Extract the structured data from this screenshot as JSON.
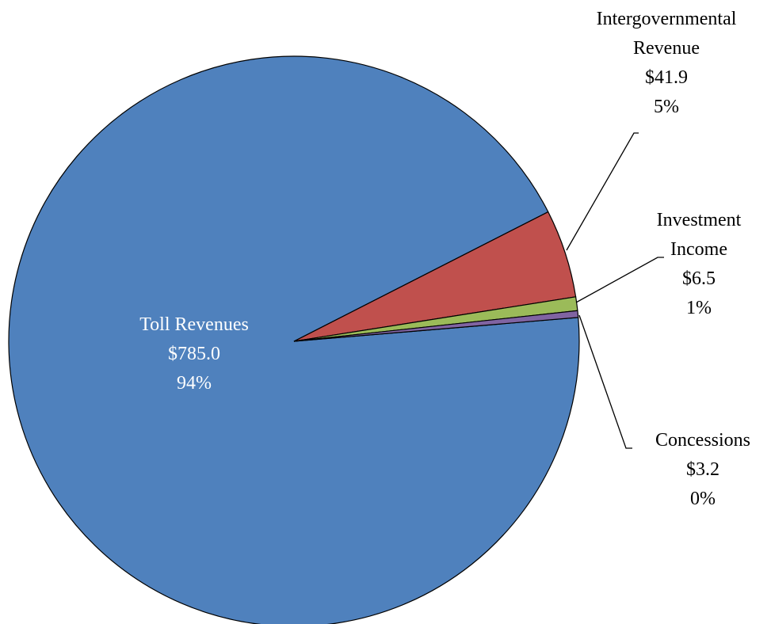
{
  "chart_data": {
    "type": "pie",
    "categories": [
      "Toll Revenues",
      "Intergovernmental Revenue",
      "Investment Income",
      "Concessions"
    ],
    "values": [
      785.0,
      41.9,
      6.5,
      3.2
    ],
    "value_labels": [
      "$785.0",
      "$41.9",
      "$6.5",
      "$3.2"
    ],
    "percent_labels": [
      "94%",
      "5%",
      "1%",
      "0%"
    ],
    "colors": [
      "#4f81bd",
      "#c0504d",
      "#9bbb59",
      "#8064a2"
    ]
  }
}
